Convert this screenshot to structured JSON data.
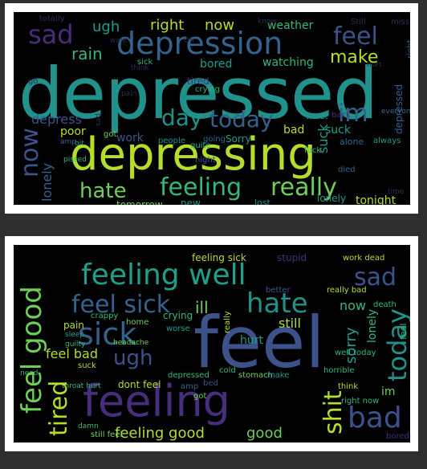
{
  "palette": {
    "purple": "#4b2b7f",
    "violet": "#472d7b",
    "indigo": "#3b528b",
    "blue": "#33638d",
    "teal": "#21918c",
    "teal2": "#1f9e89",
    "green": "#35b779",
    "lime": "#6ece58",
    "yellowgreen": "#b5de2b",
    "dim": "#2a2f4f"
  },
  "cloud1": {
    "words": [
      "depressed",
      "depressing",
      "depression",
      "sad",
      "feel",
      "feeling",
      "really",
      "hate",
      "today",
      "day",
      "im",
      "make",
      "rain",
      "ugh",
      "right",
      "now",
      "bored",
      "watching",
      "weather",
      "poor",
      "work",
      "depress",
      "tired",
      "crying",
      "lonely",
      "tonight",
      "tomorrow",
      "graduation",
      "need",
      "life",
      "getting",
      "lost",
      "bad",
      "suck",
      "Still",
      "miss",
      "totally",
      "want",
      "know",
      "sick",
      "alone",
      "always",
      "quite",
      "pain",
      "pissed",
      "Sorry",
      "fuck",
      "amp",
      "got",
      "going",
      "people",
      "new",
      "bit",
      "everyone",
      "worst",
      "back",
      "think",
      "hurt",
      "night",
      "died",
      "go",
      "time",
      "Oh"
    ]
  },
  "cloud2": {
    "words": [
      "feel",
      "feeling",
      "feeling well",
      "feel sick",
      "feel good",
      "sick",
      "sad",
      "hate",
      "tired",
      "ugh",
      "bad",
      "today",
      "now",
      "shit",
      "feeling good",
      "good",
      "still",
      "sorry",
      "really bad",
      "hurt",
      "pain",
      "crappy",
      "home",
      "feel bad",
      "dont feel",
      "crying",
      "depressed",
      "ill",
      "headache",
      "amp",
      "got",
      "worse",
      "throat hurt",
      "sleep",
      "guilty",
      "suck",
      "better",
      "well today",
      "think",
      "right now",
      "still feel",
      "stomach",
      "make",
      "bored",
      "work dead",
      "death",
      "night",
      "feeling sick",
      "stupid",
      "lonely",
      "really",
      "horrible",
      "cold",
      "miss",
      "damn",
      "need",
      "bed",
      "lost",
      "time",
      "ok",
      "im"
    ]
  }
}
